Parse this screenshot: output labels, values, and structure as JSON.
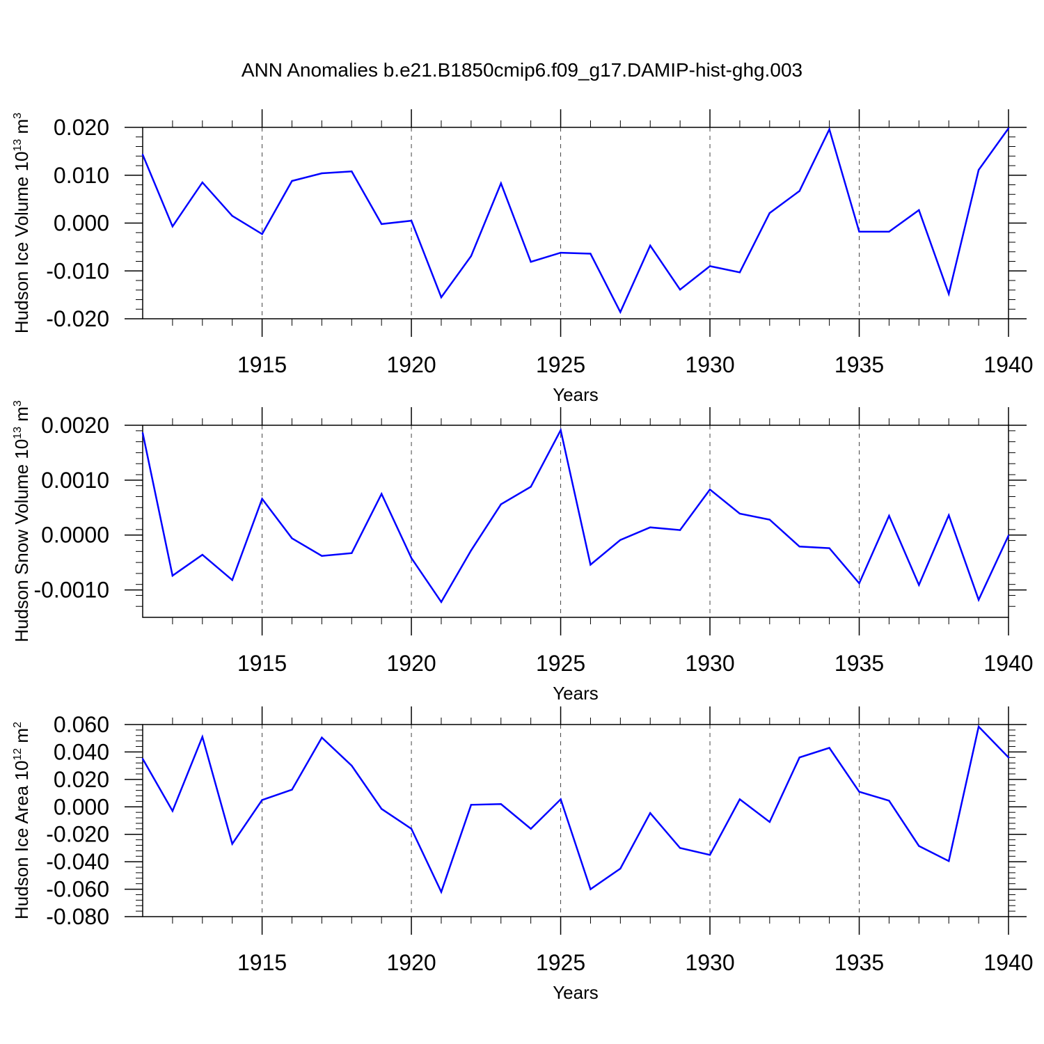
{
  "title": "ANN Anomalies b.e21.B1850cmip6.f09_g17.DAMIP-hist-ghg.003",
  "colors": {
    "line": "#0000ff",
    "axis": "#000000",
    "grid": "#444444"
  },
  "chart_data": [
    {
      "type": "line",
      "name": "ice-volume",
      "ylabel": {
        "text": "Hudson Ice Volume 10",
        "sup1": "13",
        "mid": " m",
        "sup2": "3"
      },
      "xlabel": "Years",
      "xlim": [
        1911,
        1940
      ],
      "ylim": [
        -0.02,
        0.02
      ],
      "yticks": [
        -0.02,
        -0.01,
        0.0,
        0.01,
        0.02
      ],
      "yticklabels": [
        "-0.020",
        "-0.010",
        "0.000",
        "0.010",
        "0.020"
      ],
      "yminor": 0.002,
      "x": [
        1911,
        1912,
        1913,
        1914,
        1915,
        1916,
        1917,
        1918,
        1919,
        1920,
        1921,
        1922,
        1923,
        1924,
        1925,
        1926,
        1927,
        1928,
        1929,
        1930,
        1931,
        1932,
        1933,
        1934,
        1935,
        1936,
        1937,
        1938,
        1939,
        1940
      ],
      "values": [
        0.0143,
        -0.0007,
        0.0085,
        0.0015,
        -0.0023,
        0.0088,
        0.0104,
        0.0108,
        -0.0002,
        0.0005,
        -0.0155,
        -0.0069,
        0.0083,
        -0.0081,
        -0.0062,
        -0.0064,
        -0.0186,
        -0.0047,
        -0.0139,
        -0.009,
        -0.0103,
        0.0021,
        0.0067,
        0.0196,
        -0.0018,
        -0.0018,
        0.0027,
        -0.0148,
        0.0111,
        0.0198
      ]
    },
    {
      "type": "line",
      "name": "snow-volume",
      "ylabel": {
        "text": "Hudson Snow Volume 10",
        "sup1": "13",
        "mid": " m",
        "sup2": "3"
      },
      "xlabel": "Years",
      "xlim": [
        1911,
        1940
      ],
      "ylim": [
        -0.0015,
        0.002
      ],
      "yticks": [
        -0.001,
        0.0,
        0.001,
        0.002
      ],
      "yticklabels": [
        "-0.0010",
        "0.0000",
        "0.0010",
        "0.0020"
      ],
      "yminor": 0.0002,
      "x": [
        1911,
        1912,
        1913,
        1914,
        1915,
        1916,
        1917,
        1918,
        1919,
        1920,
        1921,
        1922,
        1923,
        1924,
        1925,
        1926,
        1927,
        1928,
        1929,
        1930,
        1931,
        1932,
        1933,
        1934,
        1935,
        1936,
        1937,
        1938,
        1939,
        1940
      ],
      "values": [
        0.00186,
        -0.00074,
        -0.00036,
        -0.00082,
        0.00066,
        -6e-05,
        -0.00038,
        -0.00033,
        0.00075,
        -0.00042,
        -0.00122,
        -0.00028,
        0.00056,
        0.00088,
        0.00191,
        -0.00054,
        -9e-05,
        0.00014,
        9e-05,
        0.00083,
        0.00039,
        0.00028,
        -0.00021,
        -0.00024,
        -0.00088,
        0.00035,
        -0.00091,
        0.00036,
        -0.00118,
        -1e-05
      ]
    },
    {
      "type": "line",
      "name": "ice-area",
      "ylabel": {
        "text": "Hudson Ice Area 10",
        "sup1": "12",
        "mid": " m",
        "sup2": "2"
      },
      "xlabel": "Years",
      "xlim": [
        1911,
        1940
      ],
      "ylim": [
        -0.08,
        0.06
      ],
      "yticks": [
        -0.08,
        -0.06,
        -0.04,
        -0.02,
        0.0,
        0.02,
        0.04,
        0.06
      ],
      "yticklabels": [
        "-0.080",
        "-0.060",
        "-0.040",
        "-0.020",
        "0.000",
        "0.020",
        "0.040",
        "0.060"
      ],
      "yminor": 0.004,
      "x": [
        1911,
        1912,
        1913,
        1914,
        1915,
        1916,
        1917,
        1918,
        1919,
        1920,
        1921,
        1922,
        1923,
        1924,
        1925,
        1926,
        1927,
        1928,
        1929,
        1930,
        1931,
        1932,
        1933,
        1934,
        1935,
        1936,
        1937,
        1938,
        1939,
        1940
      ],
      "values": [
        0.035,
        -0.003,
        0.051,
        -0.027,
        0.005,
        0.0125,
        0.0505,
        0.03,
        -0.0015,
        -0.016,
        -0.062,
        0.0015,
        0.002,
        -0.016,
        0.0055,
        -0.06,
        -0.045,
        -0.0045,
        -0.03,
        -0.035,
        0.0055,
        -0.011,
        0.036,
        0.043,
        0.011,
        0.0045,
        -0.0285,
        -0.0395,
        0.0585,
        0.036
      ]
    }
  ],
  "xticks": [
    1915,
    1920,
    1925,
    1930,
    1935,
    1940
  ],
  "xticklabels": [
    "1915",
    "1920",
    "1925",
    "1930",
    "1935",
    "1940"
  ]
}
